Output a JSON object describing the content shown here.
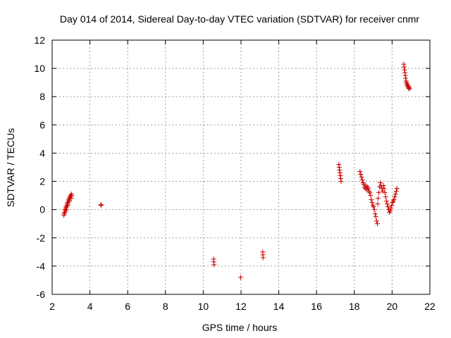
{
  "chart_data": {
    "type": "scatter",
    "title": "Day 014 of 2014, Sidereal Day-to-day VTEC variation (SDTVAR) for receiver cnmr",
    "xlabel": "GPS time / hours",
    "ylabel": "SDTVAR / TECUs",
    "xlim": [
      2,
      22
    ],
    "ylim": [
      -6,
      12
    ],
    "xticks": [
      2,
      4,
      6,
      8,
      10,
      12,
      14,
      16,
      18,
      20,
      22
    ],
    "yticks": [
      -6,
      -4,
      -2,
      0,
      2,
      4,
      6,
      8,
      10,
      12
    ],
    "xtick_labels": [
      "2",
      "4",
      "6",
      "8",
      "10",
      "12",
      "14",
      "16",
      "18",
      "20",
      "22"
    ],
    "ytick_labels": [
      "-6",
      "-4",
      "-2",
      "0",
      "2",
      "4",
      "6",
      "8",
      "10",
      "12"
    ],
    "grid": true,
    "marker": "plus",
    "marker_color": "#cc0000",
    "series": [
      {
        "name": "SDTVAR",
        "points": [
          [
            2.62,
            -0.4
          ],
          [
            2.64,
            -0.3
          ],
          [
            2.66,
            -0.2
          ],
          [
            2.68,
            0.0
          ],
          [
            2.7,
            -0.1
          ],
          [
            2.72,
            0.1
          ],
          [
            2.74,
            0.2
          ],
          [
            2.76,
            0.0
          ],
          [
            2.78,
            0.3
          ],
          [
            2.8,
            0.4
          ],
          [
            2.82,
            0.5
          ],
          [
            2.84,
            0.3
          ],
          [
            2.86,
            0.6
          ],
          [
            2.88,
            0.7
          ],
          [
            2.9,
            0.8
          ],
          [
            2.92,
            0.6
          ],
          [
            2.94,
            0.9
          ],
          [
            2.96,
            0.9
          ],
          [
            2.98,
            1.0
          ],
          [
            3.0,
            0.8
          ],
          [
            3.02,
            1.1
          ],
          [
            3.04,
            1.0
          ],
          [
            4.58,
            0.35
          ],
          [
            4.6,
            0.3
          ],
          [
            10.55,
            -3.5
          ],
          [
            10.56,
            -3.7
          ],
          [
            10.57,
            -3.9
          ],
          [
            11.98,
            -4.8
          ],
          [
            13.15,
            -3.0
          ],
          [
            13.16,
            -3.2
          ],
          [
            13.17,
            -3.4
          ],
          [
            17.18,
            3.2
          ],
          [
            17.2,
            3.0
          ],
          [
            17.22,
            2.8
          ],
          [
            17.24,
            2.6
          ],
          [
            17.26,
            2.4
          ],
          [
            17.28,
            2.2
          ],
          [
            17.3,
            2.0
          ],
          [
            18.3,
            2.7
          ],
          [
            18.34,
            2.5
          ],
          [
            18.38,
            2.3
          ],
          [
            18.42,
            2.1
          ],
          [
            18.46,
            1.9
          ],
          [
            18.5,
            1.8
          ],
          [
            18.54,
            1.6
          ],
          [
            18.58,
            1.5
          ],
          [
            18.62,
            1.7
          ],
          [
            18.66,
            1.4
          ],
          [
            18.7,
            1.6
          ],
          [
            18.74,
            1.5
          ],
          [
            18.78,
            1.3
          ],
          [
            18.82,
            1.2
          ],
          [
            18.86,
            1.0
          ],
          [
            18.9,
            0.7
          ],
          [
            18.94,
            0.5
          ],
          [
            18.98,
            0.3
          ],
          [
            19.02,
            0.2
          ],
          [
            19.06,
            0.0
          ],
          [
            19.1,
            -0.3
          ],
          [
            19.14,
            -0.5
          ],
          [
            19.18,
            -0.8
          ],
          [
            19.22,
            -1.0
          ],
          [
            19.24,
            0.4
          ],
          [
            19.26,
            0.8
          ],
          [
            19.3,
            1.2
          ],
          [
            19.34,
            1.6
          ],
          [
            19.38,
            1.9
          ],
          [
            19.42,
            1.7
          ],
          [
            19.46,
            1.5
          ],
          [
            19.5,
            1.3
          ],
          [
            19.54,
            1.7
          ],
          [
            19.58,
            1.5
          ],
          [
            19.62,
            1.2
          ],
          [
            19.66,
            0.9
          ],
          [
            19.7,
            0.6
          ],
          [
            19.74,
            0.4
          ],
          [
            19.78,
            0.2
          ],
          [
            19.82,
            0.0
          ],
          [
            19.86,
            -0.2
          ],
          [
            19.9,
            -0.1
          ],
          [
            19.94,
            0.1
          ],
          [
            19.98,
            0.3
          ],
          [
            20.02,
            0.5
          ],
          [
            20.06,
            0.6
          ],
          [
            20.1,
            0.7
          ],
          [
            20.14,
            0.9
          ],
          [
            20.18,
            1.1
          ],
          [
            20.22,
            1.3
          ],
          [
            20.26,
            1.5
          ],
          [
            20.62,
            10.3
          ],
          [
            20.64,
            10.1
          ],
          [
            20.66,
            9.9
          ],
          [
            20.68,
            9.7
          ],
          [
            20.7,
            9.5
          ],
          [
            20.72,
            9.3
          ],
          [
            20.74,
            9.1
          ],
          [
            20.76,
            9.0
          ],
          [
            20.78,
            8.9
          ],
          [
            20.8,
            8.8
          ],
          [
            20.82,
            8.7
          ],
          [
            20.84,
            8.8
          ],
          [
            20.86,
            8.7
          ],
          [
            20.88,
            8.6
          ],
          [
            20.9,
            8.65
          ],
          [
            20.92,
            8.55
          ]
        ]
      }
    ]
  }
}
